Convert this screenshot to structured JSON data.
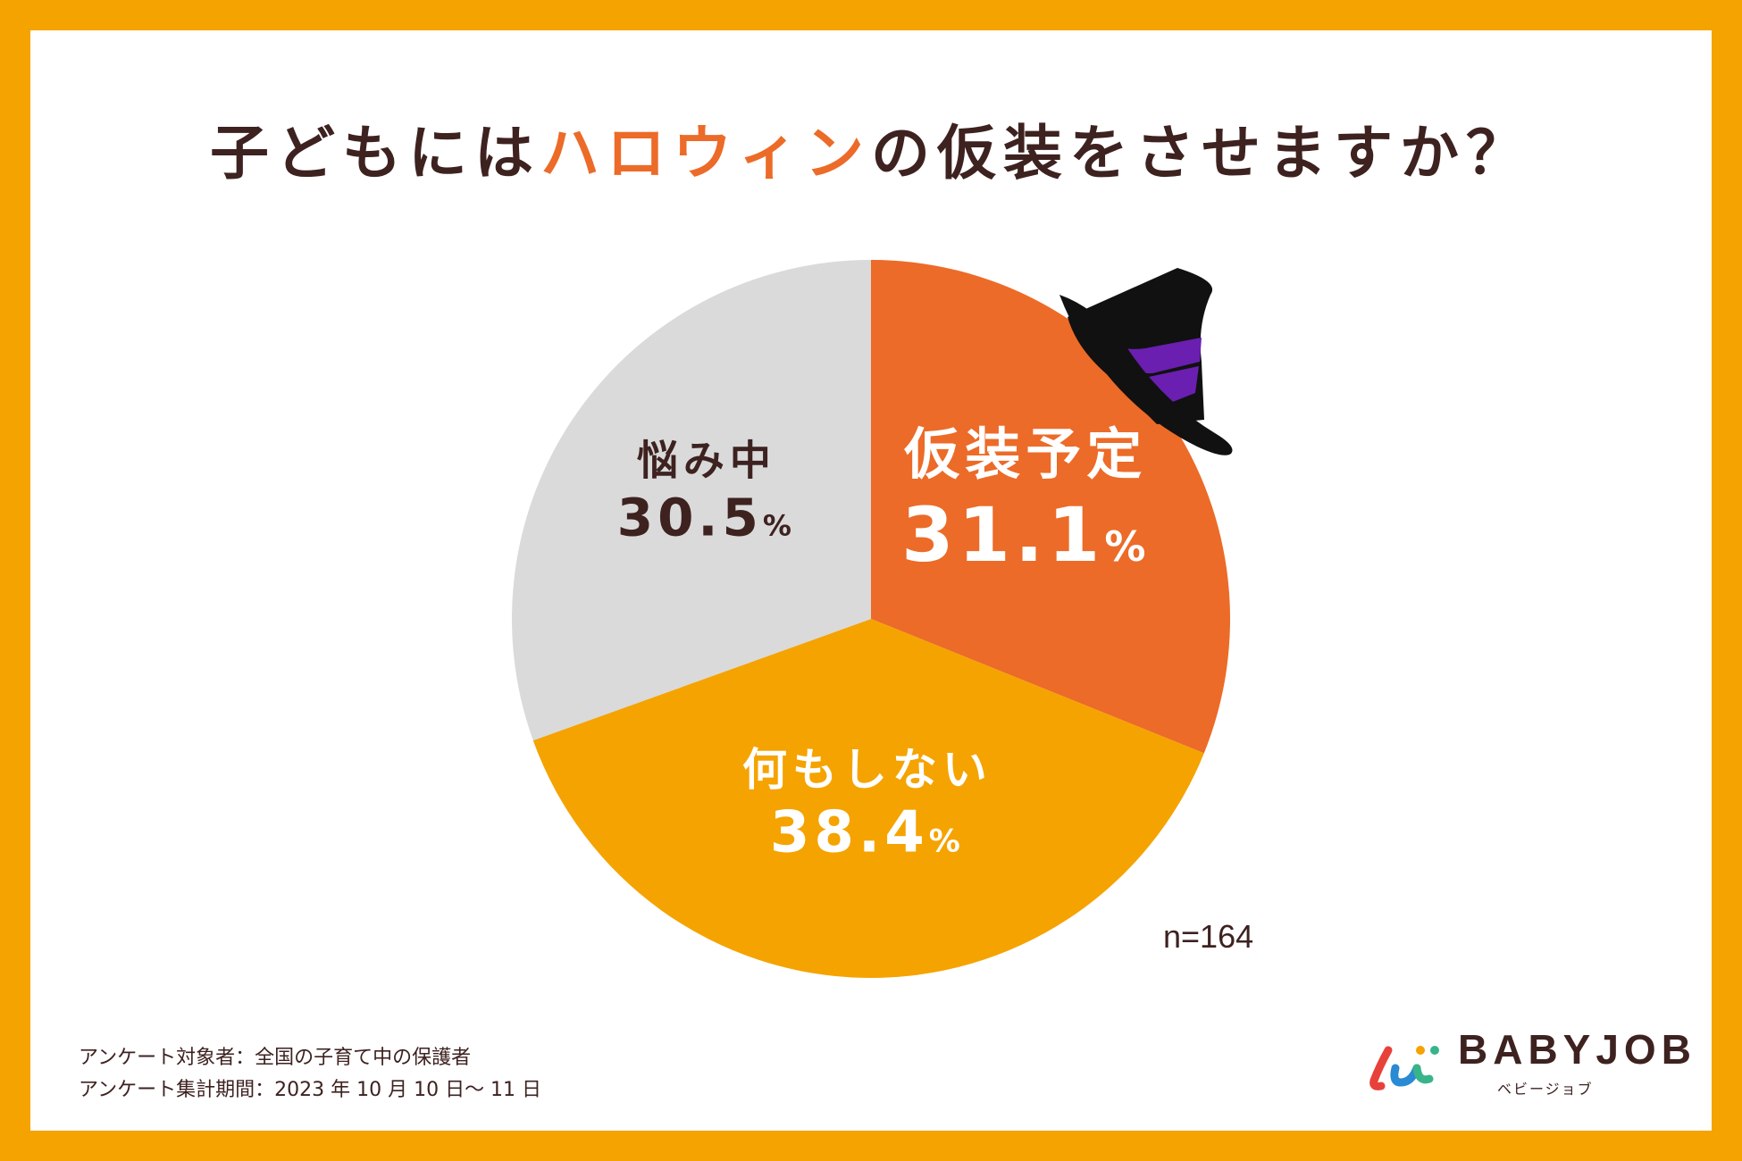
{
  "title": {
    "prefix": "子どもには",
    "highlight": "ハロウィン",
    "suffix": "の仮装をさせますか？"
  },
  "chart_data": {
    "type": "pie",
    "start_angle_deg": 0,
    "direction": "clockwise",
    "slices": [
      {
        "label": "仮装予定",
        "value": 31.1,
        "display": "31.1",
        "color": "#ec6b28",
        "text_color": "#ffffff"
      },
      {
        "label": "何もしない",
        "value": 38.4,
        "display": "38.4",
        "color": "#f5a300",
        "text_color": "#ffffff"
      },
      {
        "label": "悩み中",
        "value": 30.5,
        "display": "30.5",
        "color": "#dadada",
        "text_color": "#3d2220"
      }
    ],
    "unit": "%",
    "sample_size": "n=164"
  },
  "footnotes": {
    "target": "アンケート対象者：全国の子育て中の保護者",
    "period": "アンケート集計期間：2023 年 10 月 10 日〜 11 日"
  },
  "logo": {
    "name": "BABYJOB",
    "reading": "ベビージョブ"
  },
  "colors": {
    "border": "#f5a300",
    "title_text": "#3d2220",
    "title_highlight": "#ec6b28",
    "hat_black": "#111111",
    "hat_band": "#6a1fb0"
  },
  "decoration": {
    "icon": "witch-hat-icon"
  }
}
